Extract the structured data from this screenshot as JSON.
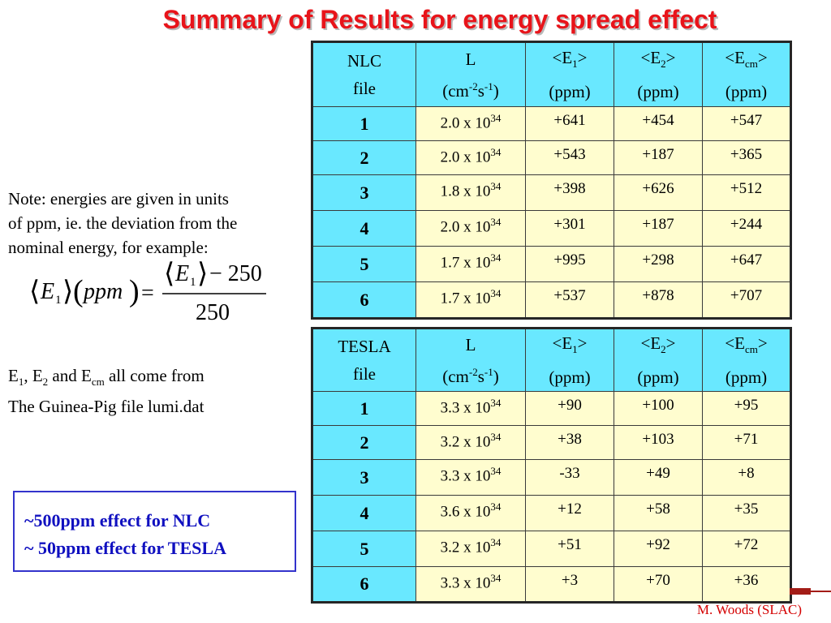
{
  "title": "Summary of Results for energy spread effect",
  "headers": {
    "l_line1": "L",
    "units_line": "(ppm)",
    "e1_line1": "<E",
    "e1_sub": "1",
    "e2_sub": "2",
    "ecm_sub": "cm",
    "close": ">",
    "cm": "(cm",
    "cm_sup1": "-2",
    "s": "s",
    "s_sup": "-1",
    "paren_close": ")"
  },
  "nlc": {
    "label_line1": "NLC",
    "label_line2": "file",
    "rows": [
      {
        "file": "1",
        "L_mant": "2.0 x 10",
        "L_exp": "34",
        "e1": "+641",
        "e2": "+454",
        "ecm": "+547"
      },
      {
        "file": "2",
        "L_mant": "2.0 x 10",
        "L_exp": "34",
        "e1": "+543",
        "e2": "+187",
        "ecm": "+365"
      },
      {
        "file": "3",
        "L_mant": "1.8 x 10",
        "L_exp": "34",
        "e1": "+398",
        "e2": "+626",
        "ecm": "+512"
      },
      {
        "file": "4",
        "L_mant": "2.0 x 10",
        "L_exp": "34",
        "e1": "+301",
        "e2": "+187",
        "ecm": "+244"
      },
      {
        "file": "5",
        "L_mant": "1.7 x 10",
        "L_exp": "34",
        "e1": "+995",
        "e2": "+298",
        "ecm": "+647"
      },
      {
        "file": "6",
        "L_mant": "1.7 x 10",
        "L_exp": "34",
        "e1": "+537",
        "e2": "+878",
        "ecm": "+707"
      }
    ]
  },
  "tesla": {
    "label_line1": "TESLA",
    "label_line2": "file",
    "rows": [
      {
        "file": "1",
        "L_mant": "3.3 x 10",
        "L_exp": "34",
        "e1": "+90",
        "e2": "+100",
        "ecm": "+95"
      },
      {
        "file": "2",
        "L_mant": "3.2 x 10",
        "L_exp": "34",
        "e1": "+38",
        "e2": "+103",
        "ecm": "+71"
      },
      {
        "file": "3",
        "L_mant": "3.3 x 10",
        "L_exp": "34",
        "e1": "-33",
        "e2": "+49",
        "ecm": "+8"
      },
      {
        "file": "4",
        "L_mant": "3.6 x 10",
        "L_exp": "34",
        "e1": "+12",
        "e2": "+58",
        "ecm": "+35"
      },
      {
        "file": "5",
        "L_mant": "3.2 x 10",
        "L_exp": "34",
        "e1": "+51",
        "e2": "+92",
        "ecm": "+72"
      },
      {
        "file": "6",
        "L_mant": "3.3 x 10",
        "L_exp": "34",
        "e1": "+3",
        "e2": "+70",
        "ecm": "+36"
      }
    ]
  },
  "note": {
    "line1": "Note:  energies are given in units",
    "line2": "of ppm, ie. the deviation from the",
    "line3": "nominal energy, for example:"
  },
  "formula": {
    "lhs_var": "E",
    "lhs_sub": "1",
    "lhs_arg": "ppm",
    "equals": "=",
    "num_var": "E",
    "num_sub": "1",
    "num_rest": "− 250",
    "den": "250"
  },
  "source_note": {
    "e": "E",
    "sub1": "1",
    "sep1": ", E",
    "sub2": "2",
    "and": " and E",
    "subcm": "cm",
    "tail": " all come from",
    "line2": "The Guinea-Pig file lumi.dat"
  },
  "summary": {
    "line1": "~500ppm effect for NLC",
    "line2": "~ 50ppm effect for TESLA"
  },
  "credit": "M. Woods (SLAC)",
  "colors": {
    "title": "#e8141a",
    "header_bg": "#69e8ff",
    "cell_bg": "#fffdcf",
    "summary_text": "#1010c0",
    "summary_border": "#3333cc",
    "credit": "#d40000",
    "accent": "#a31c17"
  }
}
